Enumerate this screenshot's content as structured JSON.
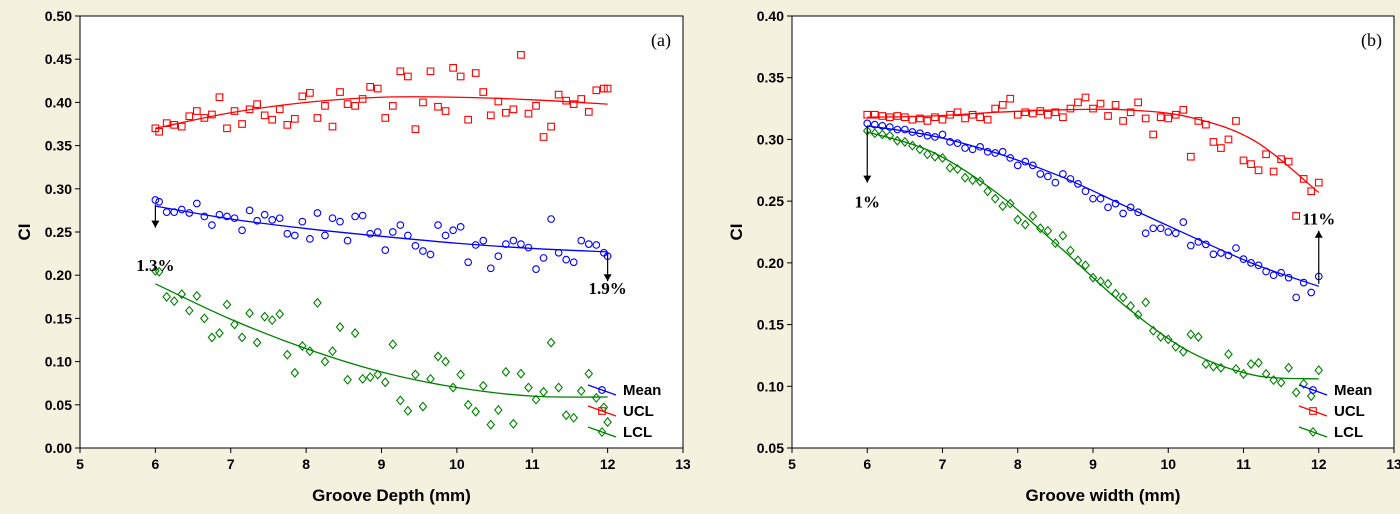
{
  "chart_data": [
    {
      "type": "scatter",
      "panel_label": "(a)",
      "xlabel": "Groove Depth (mm)",
      "ylabel": "CI",
      "xlim": [
        5,
        13
      ],
      "ylim": [
        0,
        0.5
      ],
      "xticks": [
        "5",
        "6",
        "7",
        "8",
        "9",
        "10",
        "11",
        "12",
        "13"
      ],
      "yticks": [
        "0.00",
        "0.05",
        "0.10",
        "0.15",
        "0.20",
        "0.25",
        "0.30",
        "0.35",
        "0.40",
        "0.45",
        "0.50"
      ],
      "grid": false,
      "legend_placement": "bottom-right",
      "annotations": [
        {
          "text": "1.3%",
          "x": 6.0,
          "y": 0.205,
          "arrow_from": 0.282,
          "arrow_to": 0.255
        },
        {
          "text": "1.9%",
          "x": 12.0,
          "y": 0.178,
          "arrow_from": 0.227,
          "arrow_to": 0.193
        }
      ],
      "series": [
        {
          "name": "Mean",
          "color": "#0000ff",
          "marker": "circle",
          "x": [
            6.0,
            6.05,
            6.15,
            6.25,
            6.35,
            6.45,
            6.55,
            6.65,
            6.75,
            6.85,
            6.95,
            7.05,
            7.15,
            7.25,
            7.35,
            7.45,
            7.55,
            7.65,
            7.75,
            7.85,
            7.95,
            8.05,
            8.15,
            8.25,
            8.35,
            8.45,
            8.55,
            8.65,
            8.75,
            8.85,
            8.95,
            9.05,
            9.15,
            9.25,
            9.35,
            9.45,
            9.55,
            9.65,
            9.75,
            9.85,
            9.95,
            10.05,
            10.15,
            10.25,
            10.35,
            10.45,
            10.55,
            10.65,
            10.75,
            10.85,
            10.95,
            11.05,
            11.15,
            11.25,
            11.35,
            11.45,
            11.55,
            11.65,
            11.75,
            11.85,
            11.95,
            12.0
          ],
          "y": [
            0.287,
            0.285,
            0.273,
            0.273,
            0.276,
            0.272,
            0.283,
            0.268,
            0.258,
            0.27,
            0.268,
            0.266,
            0.252,
            0.275,
            0.263,
            0.27,
            0.264,
            0.266,
            0.248,
            0.246,
            0.262,
            0.242,
            0.272,
            0.246,
            0.266,
            0.262,
            0.24,
            0.268,
            0.269,
            0.248,
            0.25,
            0.229,
            0.25,
            0.258,
            0.246,
            0.234,
            0.228,
            0.224,
            0.258,
            0.246,
            0.252,
            0.256,
            0.215,
            0.235,
            0.24,
            0.208,
            0.222,
            0.236,
            0.24,
            0.236,
            0.232,
            0.207,
            0.22,
            0.265,
            0.226,
            0.218,
            0.215,
            0.24,
            0.236,
            0.235,
            0.226,
            0.222
          ],
          "fit_y": [
            0.28,
            0.265,
            0.254,
            0.245,
            0.237,
            0.231,
            0.227
          ]
        },
        {
          "name": "UCL",
          "color": "#ff0000",
          "marker": "square",
          "x": [
            6.0,
            6.05,
            6.15,
            6.25,
            6.35,
            6.45,
            6.55,
            6.65,
            6.75,
            6.85,
            6.95,
            7.05,
            7.15,
            7.25,
            7.35,
            7.45,
            7.55,
            7.65,
            7.75,
            7.85,
            7.95,
            8.05,
            8.15,
            8.25,
            8.35,
            8.45,
            8.55,
            8.65,
            8.75,
            8.85,
            8.95,
            9.05,
            9.15,
            9.25,
            9.35,
            9.45,
            9.55,
            9.65,
            9.75,
            9.85,
            9.95,
            10.05,
            10.15,
            10.25,
            10.35,
            10.45,
            10.55,
            10.65,
            10.75,
            10.85,
            10.95,
            11.05,
            11.15,
            11.25,
            11.35,
            11.45,
            11.55,
            11.65,
            11.75,
            11.85,
            11.95,
            12.0
          ],
          "y": [
            0.37,
            0.366,
            0.376,
            0.374,
            0.372,
            0.384,
            0.39,
            0.382,
            0.386,
            0.406,
            0.37,
            0.39,
            0.375,
            0.392,
            0.398,
            0.385,
            0.38,
            0.392,
            0.374,
            0.381,
            0.407,
            0.411,
            0.382,
            0.396,
            0.372,
            0.412,
            0.398,
            0.396,
            0.404,
            0.418,
            0.416,
            0.382,
            0.396,
            0.436,
            0.43,
            0.369,
            0.4,
            0.436,
            0.395,
            0.39,
            0.44,
            0.43,
            0.38,
            0.434,
            0.412,
            0.385,
            0.401,
            0.388,
            0.392,
            0.455,
            0.387,
            0.396,
            0.36,
            0.372,
            0.409,
            0.402,
            0.398,
            0.404,
            0.389,
            0.414,
            0.416,
            0.416
          ],
          "fit_y": [
            0.37,
            0.388,
            0.4,
            0.406,
            0.406,
            0.403,
            0.398
          ]
        },
        {
          "name": "LCL",
          "color": "#008000",
          "marker": "diamond",
          "x": [
            6.0,
            6.05,
            6.15,
            6.25,
            6.35,
            6.45,
            6.55,
            6.65,
            6.75,
            6.85,
            6.95,
            7.05,
            7.15,
            7.25,
            7.35,
            7.45,
            7.55,
            7.65,
            7.75,
            7.85,
            7.95,
            8.05,
            8.15,
            8.25,
            8.35,
            8.45,
            8.55,
            8.65,
            8.75,
            8.85,
            8.95,
            9.05,
            9.15,
            9.25,
            9.35,
            9.45,
            9.55,
            9.65,
            9.75,
            9.85,
            9.95,
            10.05,
            10.15,
            10.25,
            10.35,
            10.45,
            10.55,
            10.65,
            10.75,
            10.85,
            10.95,
            11.05,
            11.15,
            11.25,
            11.35,
            11.45,
            11.55,
            11.65,
            11.75,
            11.85,
            11.95,
            12.0
          ],
          "y": [
            0.205,
            0.204,
            0.175,
            0.17,
            0.178,
            0.159,
            0.176,
            0.15,
            0.128,
            0.133,
            0.166,
            0.143,
            0.128,
            0.156,
            0.122,
            0.152,
            0.148,
            0.155,
            0.108,
            0.087,
            0.118,
            0.112,
            0.168,
            0.1,
            0.112,
            0.14,
            0.079,
            0.133,
            0.08,
            0.082,
            0.085,
            0.076,
            0.12,
            0.055,
            0.043,
            0.085,
            0.048,
            0.08,
            0.106,
            0.1,
            0.07,
            0.085,
            0.05,
            0.042,
            0.072,
            0.027,
            0.044,
            0.088,
            0.028,
            0.086,
            0.07,
            0.056,
            0.065,
            0.122,
            0.07,
            0.038,
            0.035,
            0.066,
            0.086,
            0.058,
            0.047,
            0.03
          ],
          "fit_y": [
            0.19,
            0.149,
            0.115,
            0.088,
            0.07,
            0.06,
            0.059
          ]
        }
      ]
    },
    {
      "type": "scatter",
      "panel_label": "(b)",
      "xlabel": "Groove width (mm)",
      "ylabel": "CI",
      "xlim": [
        5,
        13
      ],
      "ylim": [
        0.05,
        0.4
      ],
      "xticks": [
        "5",
        "6",
        "7",
        "8",
        "9",
        "10",
        "11",
        "12",
        "13"
      ],
      "yticks": [
        "0.05",
        "0.10",
        "0.15",
        "0.20",
        "0.25",
        "0.30",
        "0.35",
        "0.40"
      ],
      "grid": false,
      "legend_placement": "bottom-right",
      "annotations": [
        {
          "text": "1%",
          "x": 6.0,
          "y": 0.245,
          "arrow_from": 0.311,
          "arrow_to": 0.265
        },
        {
          "text": "11%",
          "x": 12.0,
          "y": 0.231,
          "arrow_from": 0.183,
          "arrow_to": 0.226
        }
      ],
      "series": [
        {
          "name": "Mean",
          "color": "#0000ff",
          "marker": "circle",
          "x": [
            6.0,
            6.1,
            6.2,
            6.3,
            6.4,
            6.5,
            6.6,
            6.7,
            6.8,
            6.9,
            7.0,
            7.1,
            7.2,
            7.3,
            7.4,
            7.5,
            7.6,
            7.7,
            7.8,
            7.9,
            8.0,
            8.1,
            8.2,
            8.3,
            8.4,
            8.5,
            8.6,
            8.7,
            8.8,
            8.9,
            9.0,
            9.1,
            9.2,
            9.3,
            9.4,
            9.5,
            9.6,
            9.7,
            9.8,
            9.9,
            10.0,
            10.1,
            10.2,
            10.3,
            10.4,
            10.5,
            10.6,
            10.7,
            10.8,
            10.9,
            11.0,
            11.1,
            11.2,
            11.3,
            11.4,
            11.5,
            11.6,
            11.7,
            11.8,
            11.9,
            12.0
          ],
          "y": [
            0.313,
            0.312,
            0.311,
            0.31,
            0.308,
            0.308,
            0.306,
            0.305,
            0.303,
            0.302,
            0.304,
            0.298,
            0.297,
            0.293,
            0.292,
            0.294,
            0.29,
            0.289,
            0.29,
            0.285,
            0.279,
            0.282,
            0.279,
            0.272,
            0.27,
            0.265,
            0.272,
            0.268,
            0.264,
            0.258,
            0.252,
            0.252,
            0.245,
            0.248,
            0.24,
            0.245,
            0.241,
            0.224,
            0.228,
            0.228,
            0.225,
            0.224,
            0.233,
            0.214,
            0.217,
            0.215,
            0.207,
            0.208,
            0.206,
            0.212,
            0.203,
            0.2,
            0.198,
            0.193,
            0.19,
            0.192,
            0.188,
            0.172,
            0.184,
            0.176,
            0.189
          ],
          "fit_y": [
            0.311,
            0.303,
            0.289,
            0.27,
            0.246,
            0.222,
            0.199,
            0.181
          ]
        },
        {
          "name": "UCL",
          "color": "#ff0000",
          "marker": "square",
          "x": [
            6.0,
            6.1,
            6.2,
            6.3,
            6.4,
            6.5,
            6.6,
            6.7,
            6.8,
            6.9,
            7.0,
            7.1,
            7.2,
            7.3,
            7.4,
            7.5,
            7.6,
            7.7,
            7.8,
            7.9,
            8.0,
            8.1,
            8.2,
            8.3,
            8.4,
            8.5,
            8.6,
            8.7,
            8.8,
            8.9,
            9.0,
            9.1,
            9.2,
            9.3,
            9.4,
            9.5,
            9.6,
            9.7,
            9.8,
            9.9,
            10.0,
            10.1,
            10.2,
            10.3,
            10.4,
            10.5,
            10.6,
            10.7,
            10.8,
            10.9,
            11.0,
            11.1,
            11.2,
            11.3,
            11.4,
            11.5,
            11.6,
            11.7,
            11.8,
            11.9,
            12.0
          ],
          "y": [
            0.32,
            0.32,
            0.319,
            0.318,
            0.319,
            0.318,
            0.316,
            0.317,
            0.315,
            0.318,
            0.316,
            0.32,
            0.322,
            0.317,
            0.32,
            0.318,
            0.316,
            0.325,
            0.328,
            0.333,
            0.32,
            0.322,
            0.321,
            0.323,
            0.32,
            0.322,
            0.318,
            0.325,
            0.33,
            0.334,
            0.325,
            0.329,
            0.319,
            0.328,
            0.315,
            0.322,
            0.33,
            0.317,
            0.304,
            0.318,
            0.317,
            0.32,
            0.324,
            0.286,
            0.315,
            0.312,
            0.298,
            0.293,
            0.3,
            0.315,
            0.283,
            0.28,
            0.275,
            0.288,
            0.274,
            0.284,
            0.282,
            0.238,
            0.268,
            0.258,
            0.265
          ],
          "fit_y": [
            0.318,
            0.319,
            0.322,
            0.324,
            0.324,
            0.318,
            0.299,
            0.257
          ]
        },
        {
          "name": "LCL",
          "color": "#008000",
          "marker": "diamond",
          "x": [
            6.0,
            6.1,
            6.2,
            6.3,
            6.4,
            6.5,
            6.6,
            6.7,
            6.8,
            6.9,
            7.0,
            7.1,
            7.2,
            7.3,
            7.4,
            7.5,
            7.6,
            7.7,
            7.8,
            7.9,
            8.0,
            8.1,
            8.2,
            8.3,
            8.4,
            8.5,
            8.6,
            8.7,
            8.8,
            8.9,
            9.0,
            9.1,
            9.2,
            9.3,
            9.4,
            9.5,
            9.6,
            9.7,
            9.8,
            9.9,
            10.0,
            10.1,
            10.2,
            10.3,
            10.4,
            10.5,
            10.6,
            10.7,
            10.8,
            10.9,
            11.0,
            11.1,
            11.2,
            11.3,
            11.4,
            11.5,
            11.6,
            11.7,
            11.8,
            11.9,
            12.0
          ],
          "y": [
            0.307,
            0.305,
            0.304,
            0.303,
            0.299,
            0.298,
            0.295,
            0.292,
            0.288,
            0.286,
            0.285,
            0.277,
            0.276,
            0.269,
            0.267,
            0.266,
            0.258,
            0.252,
            0.246,
            0.248,
            0.235,
            0.231,
            0.238,
            0.228,
            0.226,
            0.216,
            0.222,
            0.21,
            0.202,
            0.198,
            0.188,
            0.185,
            0.183,
            0.175,
            0.172,
            0.165,
            0.158,
            0.168,
            0.145,
            0.14,
            0.138,
            0.132,
            0.128,
            0.142,
            0.14,
            0.118,
            0.116,
            0.115,
            0.126,
            0.114,
            0.11,
            0.118,
            0.119,
            0.11,
            0.105,
            0.103,
            0.115,
            0.095,
            0.102,
            0.092,
            0.113
          ],
          "fit_y": [
            0.306,
            0.29,
            0.257,
            0.212,
            0.165,
            0.128,
            0.109,
            0.106
          ]
        }
      ]
    }
  ]
}
